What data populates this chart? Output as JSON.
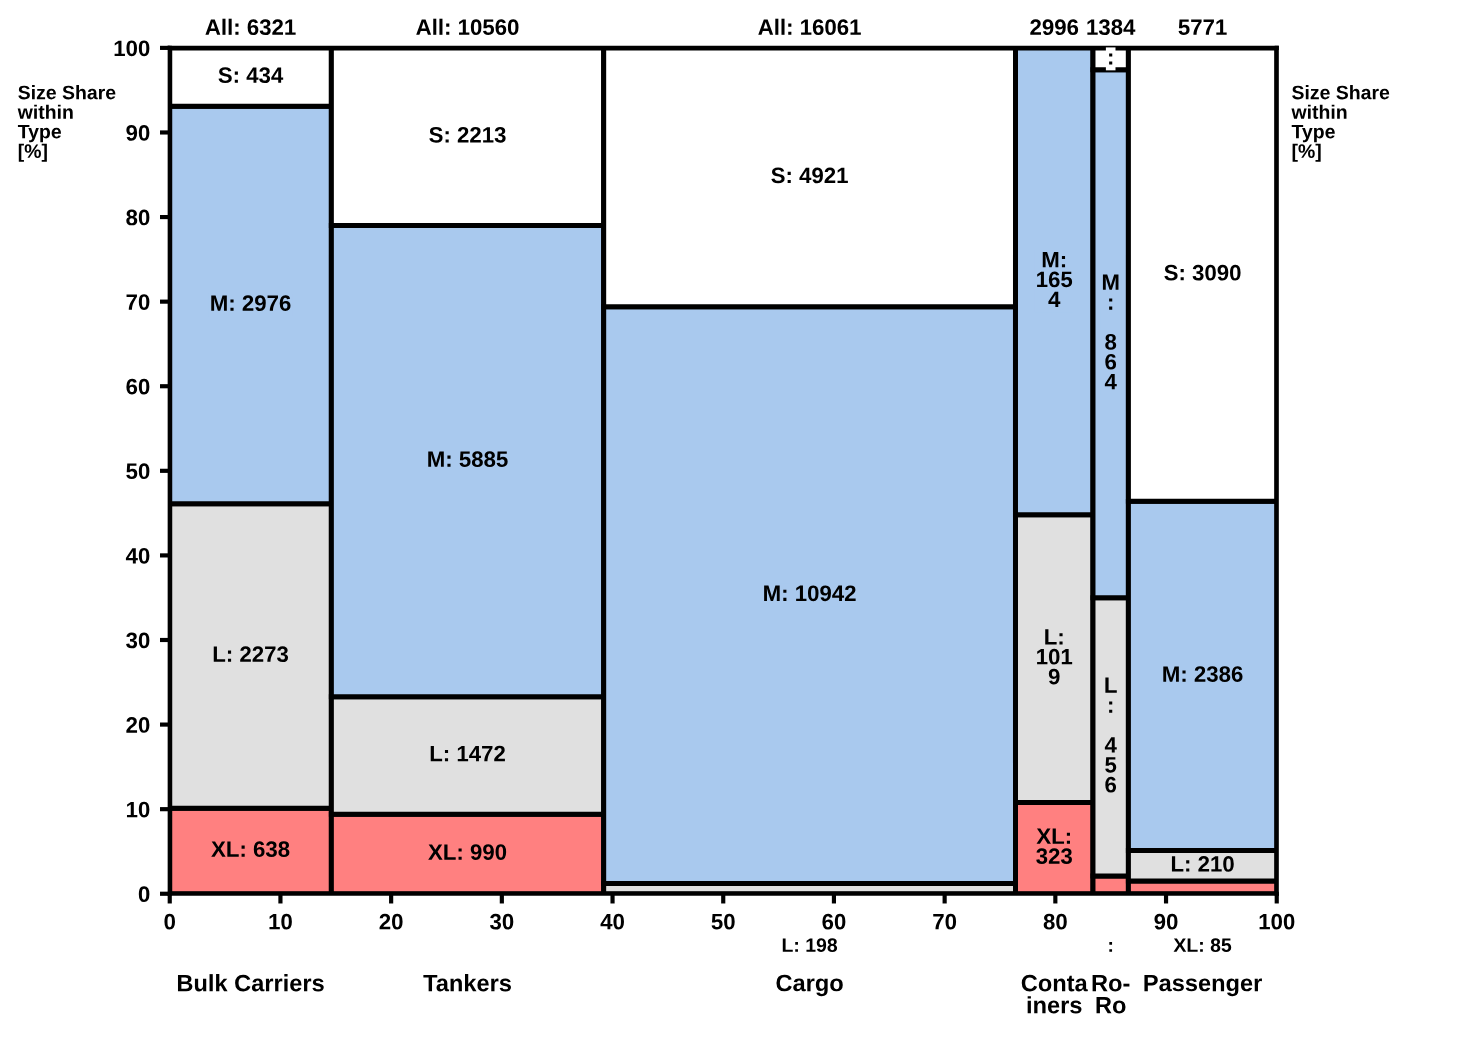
{
  "chart_data": {
    "type": "bar",
    "x": [
      7.3,
      26.9,
      57.8,
      79.9,
      85.0,
      93.3
    ],
    "series": [
      {
        "color": "#ff8080",
        "values": [
          10.1,
          9.4,
          null,
          10.8,
          2.1,
          1.5
        ]
      },
      {
        "color": "#e0e0e0",
        "values": [
          36.0,
          13.9,
          1.2,
          34.0,
          32.9,
          3.6
        ]
      },
      {
        "color": "#a9c9ee",
        "values": [
          47.0,
          55.7,
          68.2,
          55.2,
          62.4,
          41.3
        ]
      },
      {
        "color": "#ffffff",
        "values": [
          6.9,
          21.0,
          30.6,
          null,
          2.6,
          53.6
        ]
      }
    ],
    "stacked": true,
    "annotations": [
      "Bulk Carriers",
      "Tankers",
      "Cargo",
      "Conta\niners",
      "Ro-\nRo",
      "Passenger",
      "All: 6321",
      "All: 10560",
      "All: 16061",
      "2996",
      "1384",
      "5771",
      "XL: 638",
      "XL: 990",
      "XL:\n323",
      ":",
      "XL: 85",
      "L: 2273",
      "L: 1472",
      "L: 198",
      "L:\n101\n9",
      "L\n:\n\n4\n5\n6",
      "L: 210",
      "M: 2976",
      "M: 5885",
      "M: 10942",
      "M:\n165\n4",
      "M\n:\n\n8\n6\n4",
      "M: 2386",
      "S: 434",
      "S: 2213",
      "S: 4921",
      ":",
      "S: 3090"
    ],
    "ylabel": "Size Share\nwithin\nType\n[%]",
    "y2label": "Size Share\nwithin\nType\n[%]",
    "xlim": [
      0,
      100
    ],
    "xticks": [
      0,
      10,
      20,
      30,
      40,
      50,
      60,
      70,
      80,
      90,
      100
    ],
    "ylim": [
      0,
      100
    ],
    "yticks": [
      0,
      10,
      20,
      30,
      40,
      50,
      60,
      70,
      80,
      90,
      100
    ]
  }
}
